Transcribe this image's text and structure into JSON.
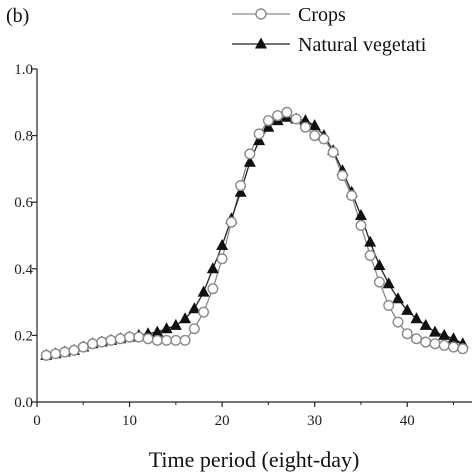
{
  "panel_label": "(b)",
  "chart_data": {
    "type": "line",
    "title": "",
    "xlabel": "Time period (eight-day)",
    "ylabel": "",
    "xlim": [
      0,
      47
    ],
    "ylim": [
      0.0,
      1.0
    ],
    "xticks": [
      0,
      10,
      20,
      30,
      40
    ],
    "yticks": [
      0.0,
      0.2,
      0.4,
      0.6,
      0.8,
      1.0
    ],
    "ytick_labels": [
      "0.0",
      "0.2",
      "0.4",
      "0.6",
      "0.8",
      "1.0"
    ],
    "legend_position": "top-right",
    "grid": false,
    "x": [
      1,
      2,
      3,
      4,
      5,
      6,
      7,
      8,
      9,
      10,
      11,
      12,
      13,
      14,
      15,
      16,
      17,
      18,
      19,
      20,
      21,
      22,
      23,
      24,
      25,
      26,
      27,
      28,
      29,
      30,
      31,
      32,
      33,
      34,
      35,
      36,
      37,
      38,
      39,
      40,
      41,
      42,
      43,
      44,
      45,
      46
    ],
    "series": [
      {
        "name": "Crops",
        "marker": "open-circle",
        "color": "#8a8a8a",
        "values": [
          0.14,
          0.145,
          0.15,
          0.155,
          0.165,
          0.175,
          0.18,
          0.185,
          0.19,
          0.195,
          0.195,
          0.19,
          0.185,
          0.185,
          0.185,
          0.185,
          0.22,
          0.27,
          0.34,
          0.43,
          0.54,
          0.65,
          0.745,
          0.805,
          0.845,
          0.86,
          0.87,
          0.85,
          0.825,
          0.8,
          0.79,
          0.75,
          0.68,
          0.62,
          0.53,
          0.44,
          0.36,
          0.29,
          0.24,
          0.205,
          0.19,
          0.18,
          0.175,
          0.17,
          0.165,
          0.16
        ]
      },
      {
        "name": "Natural vegetation",
        "marker": "filled-triangle",
        "color": "#222222",
        "values": [
          0.14,
          0.145,
          0.15,
          0.155,
          0.165,
          0.175,
          0.18,
          0.185,
          0.19,
          0.195,
          0.2,
          0.205,
          0.21,
          0.22,
          0.23,
          0.25,
          0.28,
          0.33,
          0.4,
          0.47,
          0.55,
          0.63,
          0.72,
          0.785,
          0.825,
          0.845,
          0.855,
          0.85,
          0.845,
          0.83,
          0.8,
          0.755,
          0.695,
          0.63,
          0.56,
          0.48,
          0.41,
          0.355,
          0.31,
          0.275,
          0.25,
          0.23,
          0.21,
          0.2,
          0.19,
          0.175
        ]
      }
    ]
  },
  "legend": {
    "items": [
      {
        "label": "Crops"
      },
      {
        "label": "Natural vegetati"
      }
    ]
  }
}
